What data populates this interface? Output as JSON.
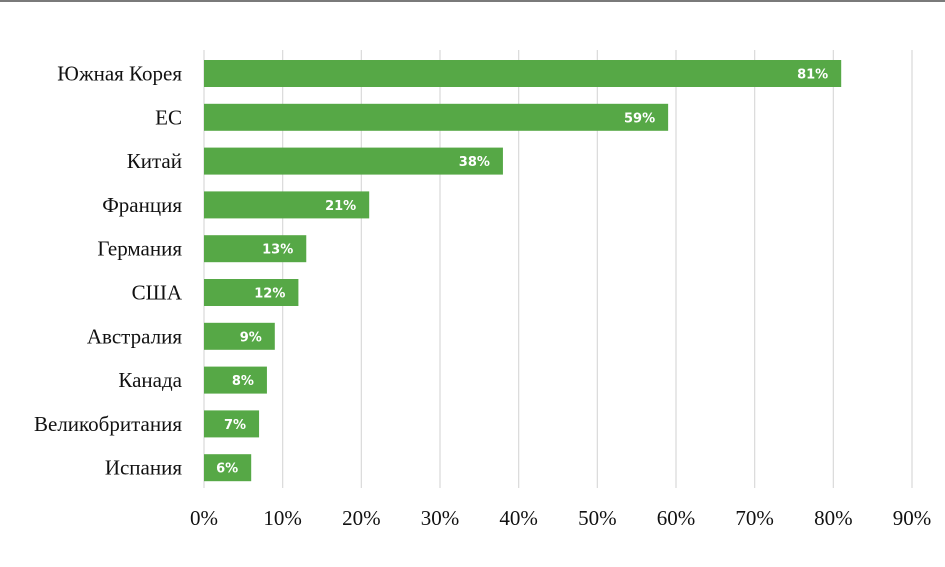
{
  "chart_data": {
    "type": "bar",
    "orientation": "horizontal",
    "categories": [
      "Южная Корея",
      "ЕС",
      "Китай",
      "Франция",
      "Германия",
      "США",
      "Австралия",
      "Канада",
      "Великобритания",
      "Испания"
    ],
    "values": [
      81,
      59,
      38,
      21,
      13,
      12,
      9,
      8,
      7,
      6
    ],
    "data_labels": [
      "81%",
      "59%",
      "38%",
      "21%",
      "13%",
      "12%",
      "9%",
      "8%",
      "7%",
      "6%"
    ],
    "xlim": [
      0,
      90
    ],
    "x_ticks": [
      0,
      10,
      20,
      30,
      40,
      50,
      60,
      70,
      80,
      90
    ],
    "x_tick_labels": [
      "0%",
      "10%",
      "20%",
      "30%",
      "40%",
      "50%",
      "60%",
      "70%",
      "80%",
      "90%"
    ],
    "grid": "vertical",
    "legend": "none",
    "bar_color": "#56a846"
  }
}
